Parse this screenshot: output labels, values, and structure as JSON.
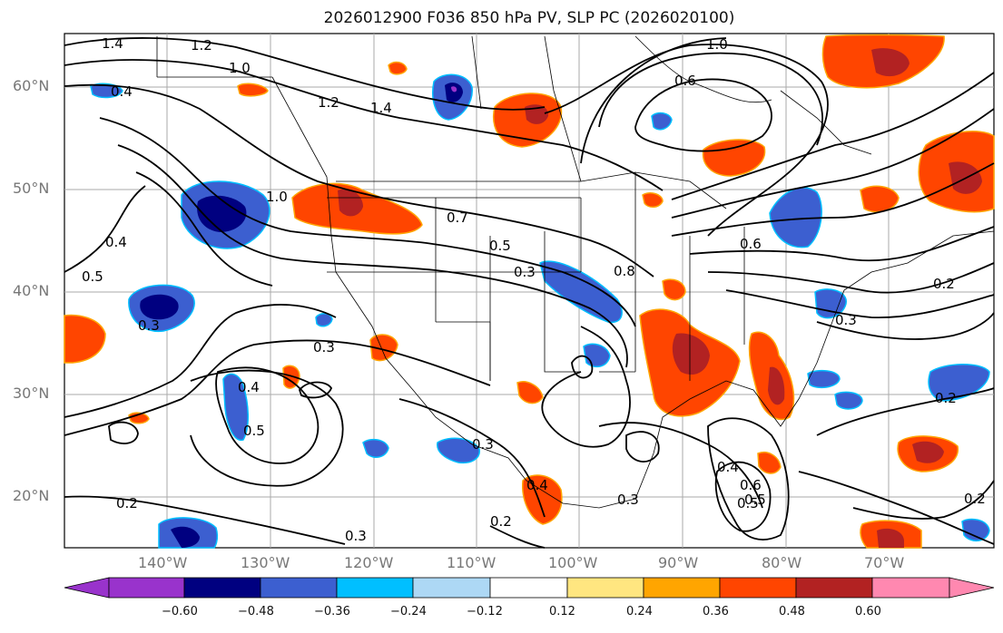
{
  "title": "2026012900 F036 850 hPa PV, SLP PC (2026020100)",
  "map": {
    "lat_labels": [
      "60°N",
      "50°N",
      "40°N",
      "30°N",
      "20°N"
    ],
    "lon_labels": [
      "140°W",
      "130°W",
      "120°W",
      "110°W",
      "100°W",
      "90°W",
      "80°W",
      "70°W"
    ],
    "contour_labels": [
      "1.4",
      "1.2",
      "1.0",
      "1.4",
      "1.2",
      "0.4",
      "1.0",
      "0.6",
      "1.0",
      "0.5",
      "0.4",
      "0.5",
      "0.3",
      "0.7",
      "0.5",
      "0.3",
      "0.8",
      "0.6",
      "0.2",
      "0.3",
      "0.3",
      "0.4",
      "0.5",
      "0.2",
      "0.4",
      "0.3",
      "0.2",
      "0.3",
      "0.4",
      "0.6",
      "0.5",
      "0.2",
      "0.2",
      "0.3"
    ]
  },
  "colorbar": {
    "labels": [
      "−0.60",
      "−0.48",
      "−0.36",
      "−0.24",
      "−0.12",
      "0.12",
      "0.24",
      "0.36",
      "0.48",
      "0.60"
    ],
    "colors": [
      "#9933cc",
      "#000080",
      "#3c5fd0",
      "#00bfff",
      "#add8f5",
      "#ffffff",
      "#ffe680",
      "#ffa500",
      "#ff4500",
      "#b22222",
      "#ff88b0"
    ]
  }
}
